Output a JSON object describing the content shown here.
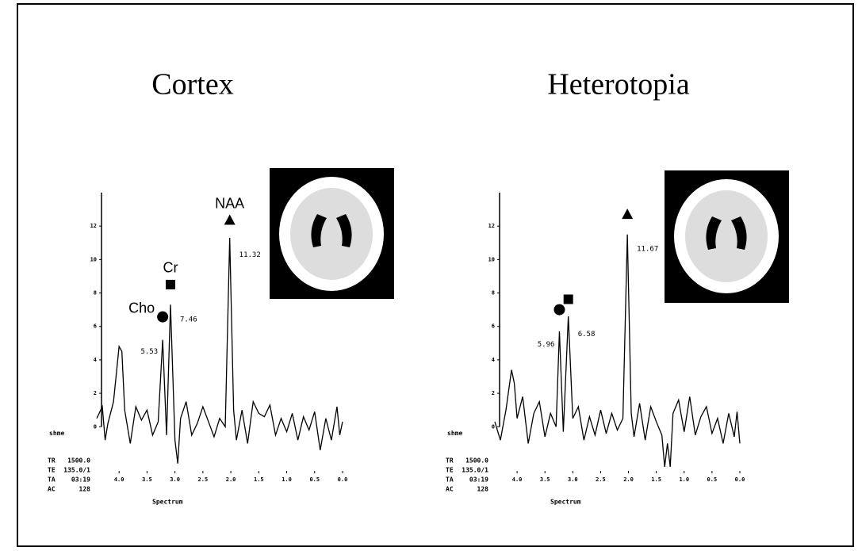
{
  "chart_data": [
    {
      "type": "line",
      "title": "Cortex",
      "x_label": "Spectrum",
      "side_label": "shme",
      "params": [
        [
          "TR",
          "1500.0"
        ],
        [
          "TE",
          "135.0/1"
        ],
        [
          "TA",
          "03:19"
        ],
        [
          "AC",
          "128"
        ]
      ],
      "x": [
        4.4,
        4.3,
        4.25,
        4.2,
        4.1,
        4.0,
        3.95,
        3.9,
        3.8,
        3.7,
        3.6,
        3.5,
        3.4,
        3.3,
        3.22,
        3.15,
        3.08,
        3.0,
        2.95,
        2.9,
        2.8,
        2.7,
        2.6,
        2.5,
        2.4,
        2.3,
        2.2,
        2.1,
        2.02,
        1.95,
        1.9,
        1.8,
        1.7,
        1.6,
        1.5,
        1.4,
        1.3,
        1.2,
        1.1,
        1.0,
        0.9,
        0.8,
        0.7,
        0.6,
        0.5,
        0.4,
        0.3,
        0.2,
        0.1,
        0.05,
        0.0
      ],
      "values": [
        0.5,
        1.2,
        -0.8,
        0.2,
        1.5,
        4.8,
        4.5,
        1.0,
        -1.0,
        1.2,
        0.4,
        1.0,
        -0.5,
        0.3,
        5.2,
        -0.5,
        7.3,
        -0.8,
        -2.2,
        0.5,
        1.5,
        -0.5,
        0.2,
        1.2,
        0.3,
        -0.6,
        0.5,
        0.0,
        11.3,
        1.0,
        -0.8,
        1.0,
        -1.0,
        1.5,
        0.8,
        0.6,
        1.3,
        -0.5,
        0.5,
        -0.3,
        0.8,
        -0.8,
        0.6,
        -0.2,
        0.9,
        -1.4,
        0.5,
        -0.8,
        1.2,
        -0.5,
        0.3
      ],
      "color": "#000000",
      "xlim": [
        4.4,
        0.0
      ],
      "ylim": [
        -2.5,
        14
      ],
      "xticks": [
        {
          "value": 4,
          "label": "4.0"
        },
        {
          "value": 3.5,
          "label": "3.5"
        },
        {
          "value": 3,
          "label": "3.0"
        },
        {
          "value": 2.5,
          "label": "2.5"
        },
        {
          "value": 2,
          "label": "2.0"
        },
        {
          "value": 1.5,
          "label": "1.5"
        },
        {
          "value": 1,
          "label": "1.0"
        },
        {
          "value": 0.5,
          "label": "0.5"
        },
        {
          "value": 0,
          "label": "0.0"
        }
      ],
      "yticks": [
        0,
        2,
        4,
        6,
        8,
        10,
        12
      ],
      "peaks": [
        {
          "name": "Cho",
          "marker": "circle",
          "x": 3.22,
          "value": 5.53
        },
        {
          "name": "Cr",
          "marker": "square",
          "x": 3.08,
          "value": 7.46
        },
        {
          "name": "NAA",
          "marker": "triangle",
          "x": 2.02,
          "value": 11.32
        }
      ]
    },
    {
      "type": "line",
      "title": "Heterotopia",
      "x_label": "Spectrum",
      "side_label": "shme",
      "params": [
        [
          "TR",
          "1500.0"
        ],
        [
          "TE",
          "135.0/1"
        ],
        [
          "TA",
          "03:19"
        ],
        [
          "AC",
          "128"
        ]
      ],
      "x": [
        4.4,
        4.3,
        4.2,
        4.1,
        4.05,
        4.0,
        3.9,
        3.8,
        3.7,
        3.6,
        3.5,
        3.4,
        3.3,
        3.24,
        3.17,
        3.08,
        3.0,
        2.9,
        2.8,
        2.7,
        2.6,
        2.5,
        2.4,
        2.3,
        2.2,
        2.1,
        2.02,
        1.95,
        1.9,
        1.8,
        1.7,
        1.6,
        1.5,
        1.4,
        1.35,
        1.3,
        1.25,
        1.2,
        1.1,
        1.0,
        0.9,
        0.8,
        0.7,
        0.6,
        0.5,
        0.4,
        0.3,
        0.2,
        0.1,
        0.05,
        0.0
      ],
      "values": [
        0.3,
        -0.8,
        1.0,
        3.4,
        2.6,
        0.5,
        1.8,
        -1.0,
        0.8,
        1.5,
        -0.6,
        0.8,
        0.0,
        5.7,
        -0.3,
        6.6,
        0.5,
        1.2,
        -0.8,
        0.6,
        -0.5,
        1.0,
        -0.4,
        0.8,
        -0.2,
        0.5,
        11.5,
        0.8,
        -0.6,
        1.4,
        -0.8,
        1.2,
        0.3,
        -0.5,
        -2.4,
        -1.0,
        -2.4,
        0.8,
        1.6,
        -0.3,
        1.8,
        -0.5,
        0.6,
        1.2,
        -0.4,
        0.5,
        -1.0,
        0.8,
        -0.6,
        0.9,
        -1.0
      ],
      "color": "#000000",
      "xlim": [
        4.4,
        0.0
      ],
      "ylim": [
        -2.5,
        14
      ],
      "xticks": [
        {
          "value": 4,
          "label": "4.0"
        },
        {
          "value": 3.5,
          "label": "3.5"
        },
        {
          "value": 3,
          "label": "3.0"
        },
        {
          "value": 2.5,
          "label": "2.5"
        },
        {
          "value": 2,
          "label": "2.0"
        },
        {
          "value": 1.5,
          "label": "1.5"
        },
        {
          "value": 1,
          "label": "1.0"
        },
        {
          "value": 0.5,
          "label": "0.5"
        },
        {
          "value": 0,
          "label": "0.0"
        }
      ],
      "yticks": [
        0,
        2,
        4,
        6,
        8,
        10,
        12
      ],
      "peaks": [
        {
          "marker": "circle",
          "x": 3.24,
          "value": 5.96
        },
        {
          "marker": "square",
          "x": 3.08,
          "value": 6.58
        },
        {
          "marker": "triangle",
          "x": 2.02,
          "value": 11.67
        }
      ]
    }
  ]
}
